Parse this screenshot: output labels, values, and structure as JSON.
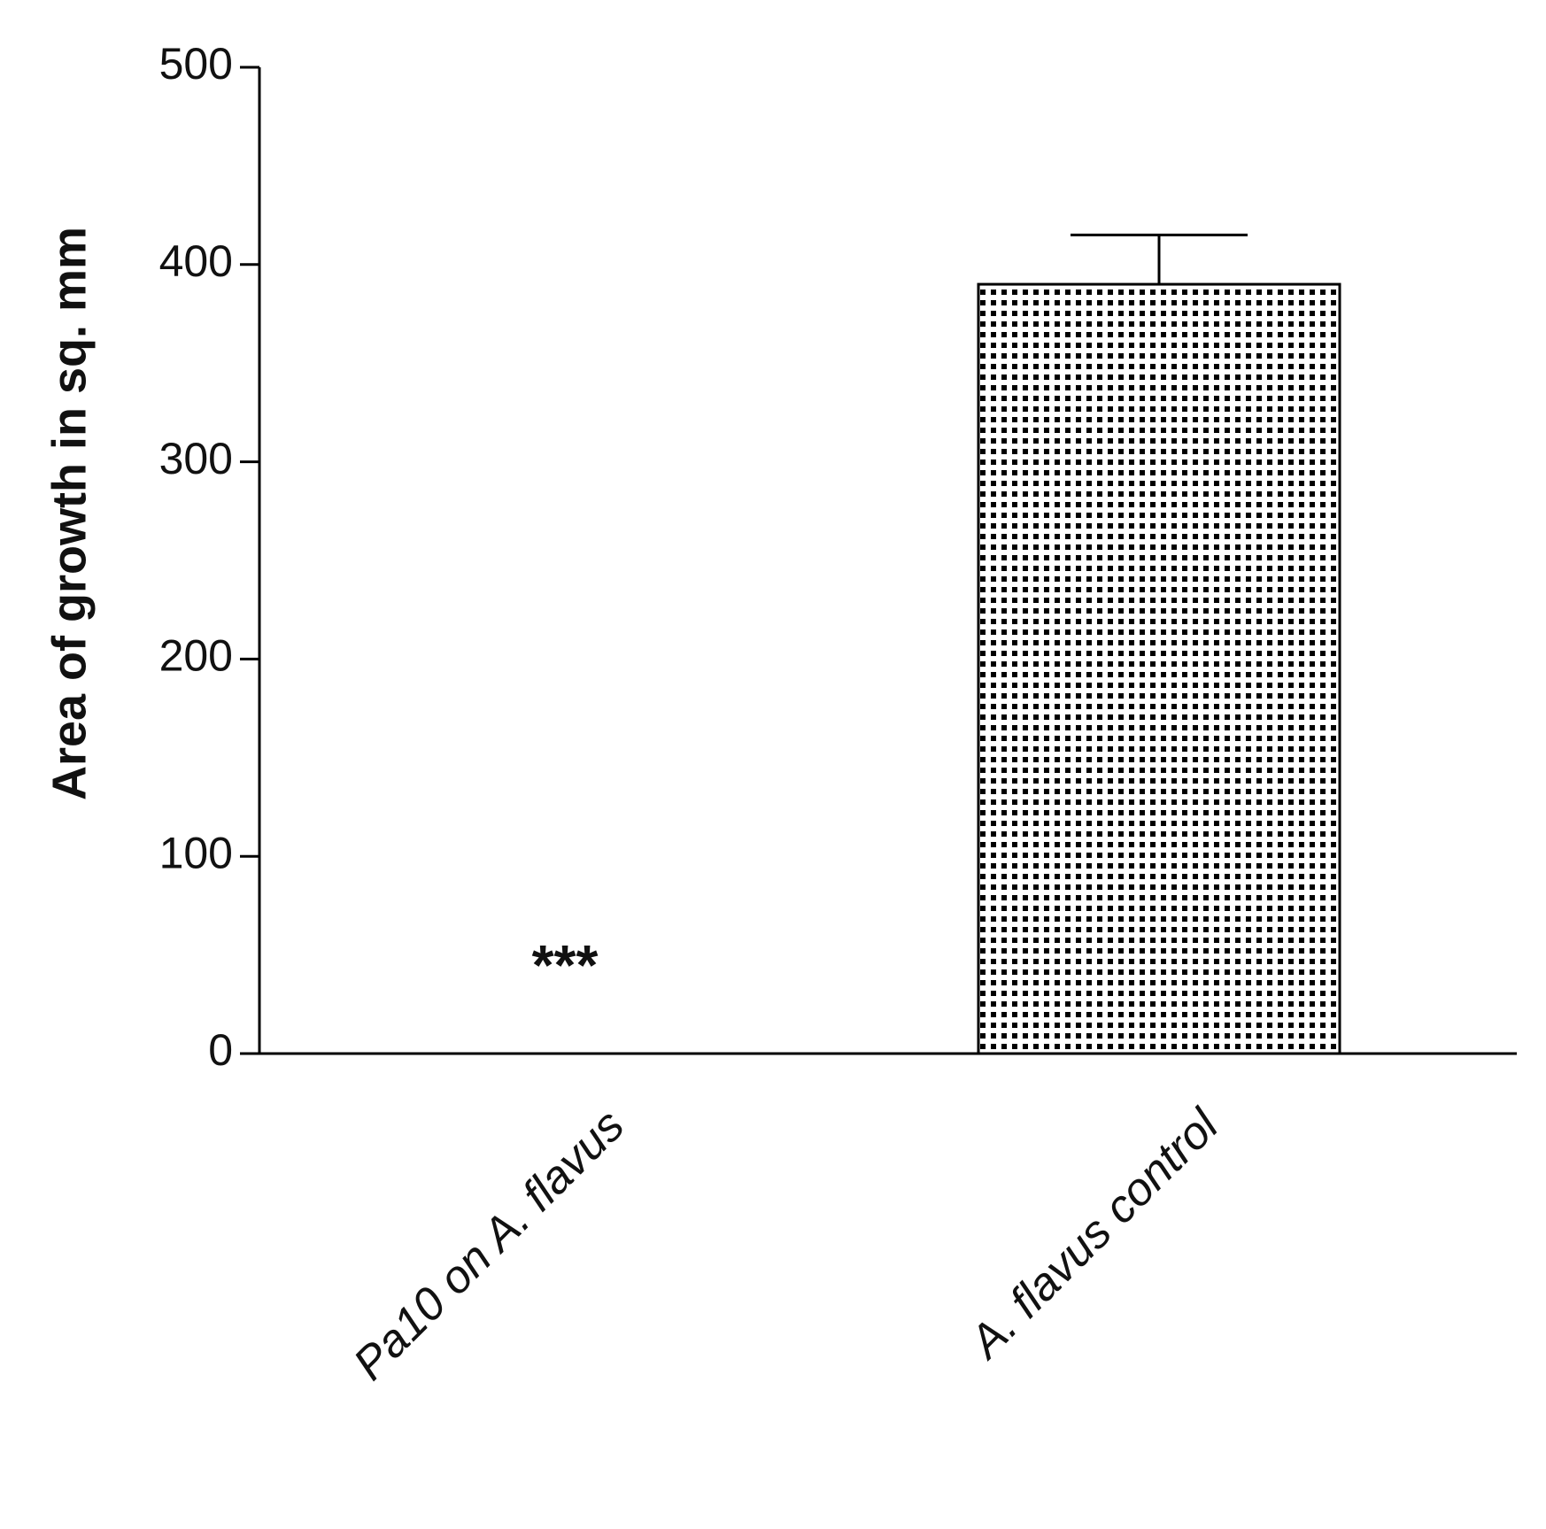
{
  "chart_data": {
    "type": "bar",
    "ylabel": "Area of growth in sq. mm",
    "categories": [
      "Pa10 on A. flavus",
      "A. flavus control"
    ],
    "values": [
      0,
      390
    ],
    "errors": [
      null,
      25
    ],
    "annotation": "***",
    "color": "#000000",
    "ylim": [
      0,
      500
    ],
    "yticks": [
      0,
      100,
      200,
      300,
      400,
      500
    ],
    "grid": false
  }
}
